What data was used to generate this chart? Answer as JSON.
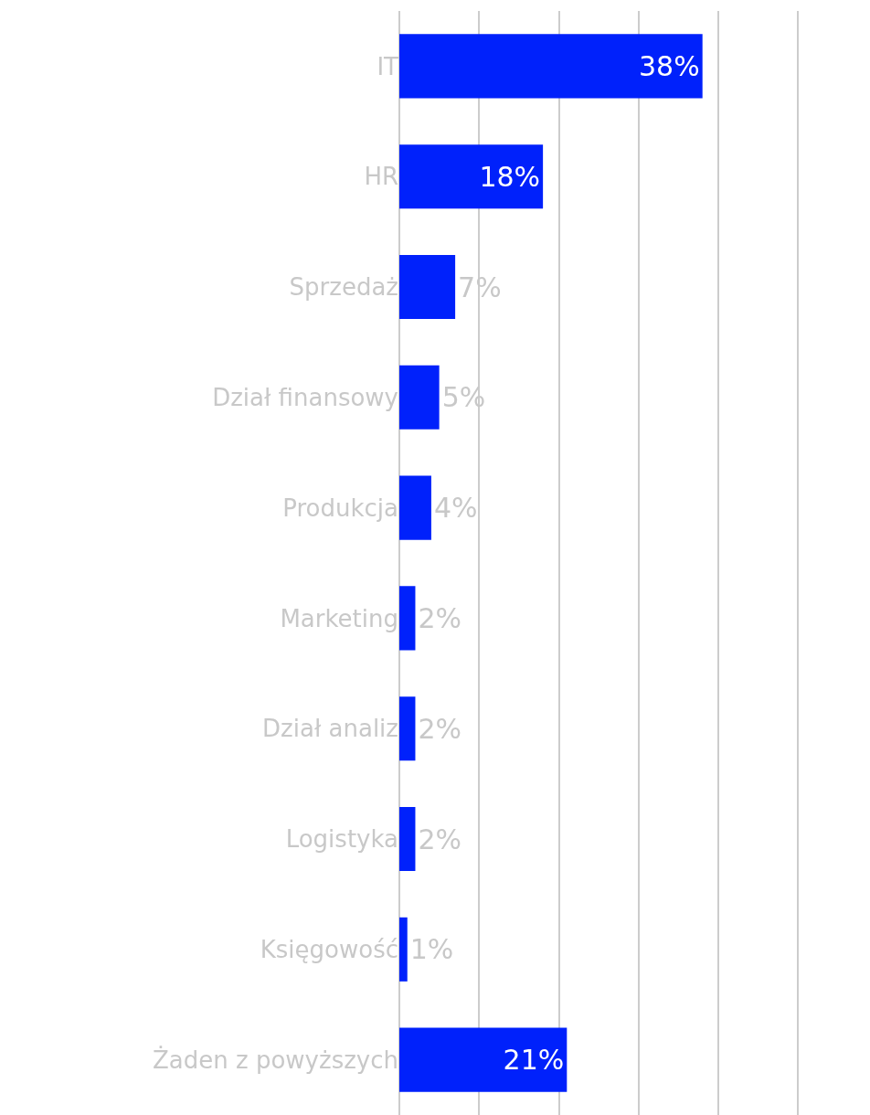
{
  "chart_data": {
    "type": "bar",
    "orientation": "horizontal",
    "categories": [
      "IT",
      "HR",
      "Sprzedaż",
      "Dział finansowy",
      "Produkcja",
      "Marketing",
      "Dział analiz",
      "Logistyka",
      "Księgowość",
      "Żaden z powyższych"
    ],
    "values": [
      38,
      18,
      7,
      5,
      4,
      2,
      2,
      2,
      1,
      21
    ],
    "value_labels": [
      "38%",
      "18%",
      "7%",
      "5%",
      "4%",
      "2%",
      "2%",
      "2%",
      "1%",
      "21%"
    ],
    "color": "#0021fb",
    "xlim": [
      0,
      59
    ],
    "xticks": [
      {
        "value": 0,
        "label": null
      },
      {
        "value": 10,
        "label": null
      },
      {
        "value": 20,
        "label": null
      },
      {
        "value": 30,
        "label": null
      },
      {
        "value": 40,
        "label": null
      },
      {
        "value": 50,
        "label": null
      }
    ],
    "grid": "x",
    "tick_labels": "y"
  }
}
